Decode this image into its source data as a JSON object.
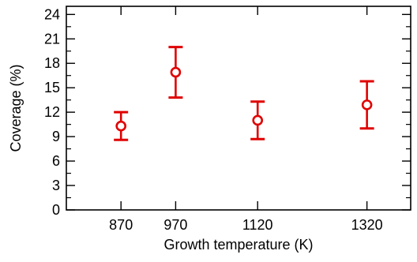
{
  "chart_data": {
    "type": "scatter",
    "xlabel": "Growth temperature (K)",
    "ylabel": "Coverage (%)",
    "x_categories": [
      "870",
      "970",
      "1120",
      "1320"
    ],
    "x_values": [
      870,
      970,
      1120,
      1320
    ],
    "xlim": [
      770,
      1400
    ],
    "ylim": [
      0,
      25
    ],
    "y_ticks": [
      0,
      3,
      6,
      9,
      12,
      15,
      18,
      21,
      24
    ],
    "grid": false,
    "legend": "none",
    "series": [
      {
        "color": "#e00000",
        "points": [
          {
            "x": 870,
            "y": 10.3,
            "err_low": 8.6,
            "err_high": 12.0
          },
          {
            "x": 970,
            "y": 16.9,
            "err_low": 13.8,
            "err_high": 20.0
          },
          {
            "x": 1120,
            "y": 11.0,
            "err_low": 8.7,
            "err_high": 13.3
          },
          {
            "x": 1320,
            "y": 12.9,
            "err_low": 10.0,
            "err_high": 15.8
          }
        ]
      }
    ]
  }
}
